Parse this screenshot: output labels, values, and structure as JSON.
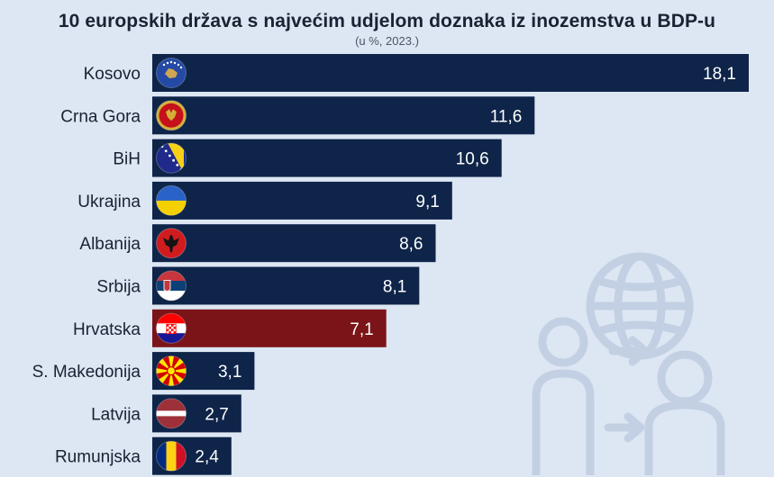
{
  "chart_data": {
    "type": "bar",
    "orientation": "horizontal",
    "title": "10 europskih država s najvećim udjelom doznaka iz inozemstva u BDP-u",
    "subtitle": "(u %, 2023.)",
    "categories": [
      "Kosovo",
      "Crna Gora",
      "BiH",
      "Ukrajina",
      "Albanija",
      "Srbija",
      "Hrvatska",
      "S. Makedonija",
      "Latvija",
      "Rumunjska"
    ],
    "values": [
      18.1,
      11.6,
      10.6,
      9.1,
      8.6,
      8.1,
      7.1,
      3.1,
      2.7,
      2.4
    ],
    "value_labels": [
      "18,1",
      "11,6",
      "10,6",
      "9,1",
      "8,6",
      "8,1",
      "7,1",
      "3,1",
      "2,7",
      "2,4"
    ],
    "xlim": [
      0,
      18.1
    ],
    "grid": false,
    "legend": "none",
    "bar_color": "#0e2449",
    "highlight_category": "Hrvatska",
    "highlight_color": "#7a1418",
    "flags": [
      "kosovo-flag-icon",
      "montenegro-flag-icon",
      "bih-flag-icon",
      "ukraine-flag-icon",
      "albania-flag-icon",
      "serbia-flag-icon",
      "croatia-flag-icon",
      "north-macedonia-flag-icon",
      "latvia-flag-icon",
      "romania-flag-icon"
    ]
  },
  "colors": {
    "background": "#dde6f3",
    "text": "#1a2233"
  }
}
